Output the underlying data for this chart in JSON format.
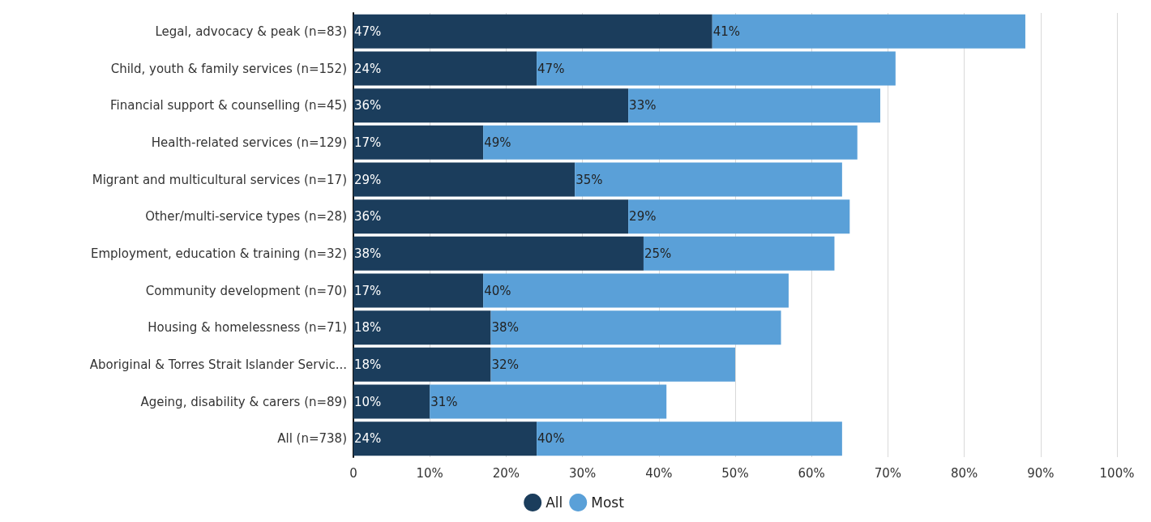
{
  "chart_data": {
    "type": "bar",
    "orientation": "horizontal",
    "stacked": true,
    "grid": "x",
    "legend": "bottom",
    "categories": [
      "Legal, advocacy & peak (n=83)",
      "Child, youth & family services (n=152)",
      "Financial support & counselling (n=45)",
      "Health-related services (n=129)",
      "Migrant and multicultural services (n=17)",
      "Other/multi-service types (n=28)",
      "Employment, education & training (n=32)",
      "Community development (n=70)",
      "Housing & homelessness (n=71)",
      "Aboriginal & Torres Strait Islander Servic...",
      "Ageing, disability & carers (n=89)",
      "All (n=738)"
    ],
    "series": [
      {
        "name": "All",
        "color": "#1b3d5c",
        "values": [
          47,
          24,
          36,
          17,
          29,
          36,
          38,
          17,
          18,
          18,
          10,
          24
        ],
        "value_labels": [
          "47%",
          "24%",
          "36%",
          "17%",
          "29%",
          "36%",
          "38%",
          "17%",
          "18%",
          "18%",
          "10%",
          "24%"
        ]
      },
      {
        "name": "Most",
        "color": "#5aa0d8",
        "values": [
          41,
          47,
          33,
          49,
          35,
          29,
          25,
          40,
          38,
          32,
          31,
          40
        ],
        "value_labels": [
          "41%",
          "47%",
          "33%",
          "49%",
          "35%",
          "29%",
          "25%",
          "40%",
          "38%",
          "32%",
          "31%",
          "40%"
        ]
      }
    ],
    "xlim": [
      0,
      100
    ],
    "xticks": [
      {
        "value": 0,
        "label": "0"
      },
      {
        "value": 10,
        "label": "10%"
      },
      {
        "value": 20,
        "label": "20%"
      },
      {
        "value": 30,
        "label": "30%"
      },
      {
        "value": 40,
        "label": "40%"
      },
      {
        "value": 50,
        "label": "50%"
      },
      {
        "value": 60,
        "label": "60%"
      },
      {
        "value": 70,
        "label": "70%"
      },
      {
        "value": 80,
        "label": "80%"
      },
      {
        "value": 90,
        "label": "90%"
      },
      {
        "value": 100,
        "label": "100%"
      }
    ]
  }
}
